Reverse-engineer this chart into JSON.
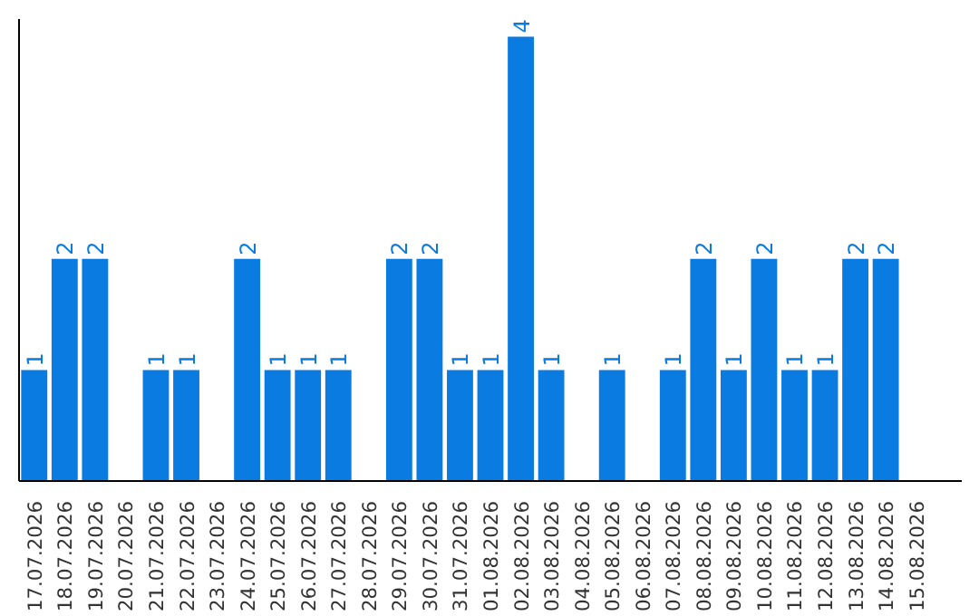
{
  "chart_data": {
    "type": "bar",
    "categories": [
      "17.07.2026",
      "18.07.2026",
      "19.07.2026",
      "20.07.2026",
      "21.07.2026",
      "22.07.2026",
      "23.07.2026",
      "24.07.2026",
      "25.07.2026",
      "26.07.2026",
      "27.07.2026",
      "28.07.2026",
      "29.07.2026",
      "30.07.2026",
      "31.07.2026",
      "01.08.2026",
      "02.08.2026",
      "03.08.2026",
      "04.08.2026",
      "05.08.2026",
      "06.08.2026",
      "07.08.2026",
      "08.08.2026",
      "09.08.2026",
      "10.08.2026",
      "11.08.2026",
      "12.08.2026",
      "13.08.2026",
      "14.08.2026",
      "15.08.2026"
    ],
    "values": [
      1,
      2,
      2,
      null,
      1,
      1,
      null,
      2,
      1,
      1,
      1,
      null,
      2,
      2,
      1,
      1,
      4,
      1,
      null,
      1,
      null,
      1,
      2,
      1,
      2,
      1,
      1,
      2,
      2,
      null
    ],
    "color": "#0a7be0",
    "data_labels": true,
    "tick_labels": "x"
  }
}
